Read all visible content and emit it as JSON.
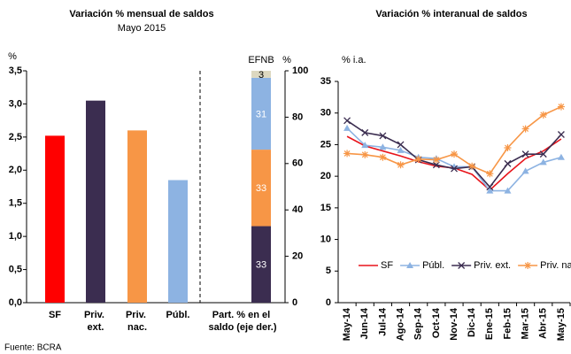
{
  "chart_data": [
    {
      "type": "bar",
      "title": "Variación % mensual de saldos",
      "subtitle": "Mayo 2015",
      "ylabel": "%",
      "y2label": "%",
      "categories": [
        "SF",
        "Priv. ext.",
        "Priv. nac.",
        "Públ."
      ],
      "values": [
        2.52,
        3.05,
        2.6,
        1.85
      ],
      "colors": [
        "#ff0000",
        "#3b2d50",
        "#f79646",
        "#8db3e2"
      ],
      "ylim": [
        0,
        3.5
      ],
      "yticks": [
        {
          "value": 0,
          "label": "0,0"
        },
        {
          "value": 0.5,
          "label": "0,5"
        },
        {
          "value": 1,
          "label": "1,0"
        },
        {
          "value": 1.5,
          "label": "1,5"
        },
        {
          "value": 2,
          "label": "2,0"
        },
        {
          "value": 2.5,
          "label": "2,5"
        },
        {
          "value": 3,
          "label": "3,0"
        },
        {
          "value": 3.5,
          "label": "3,5"
        }
      ],
      "y2lim": [
        0,
        100
      ],
      "y2ticks": [
        0,
        20,
        40,
        60,
        80,
        100
      ],
      "stack": {
        "category": "Part. % en el saldo (eje der.)",
        "axis": "y2",
        "segments": [
          {
            "value": 33,
            "color": "#3b2d50"
          },
          {
            "value": 33,
            "color": "#f79646"
          },
          {
            "value": 31,
            "color": "#8db3e2"
          },
          {
            "name": "EFNB",
            "value": 3,
            "color": "#ddd8c0"
          }
        ]
      }
    },
    {
      "type": "line",
      "title": "Variación % interanual de saldos",
      "ylabel": "% i.a.",
      "categories": [
        "May-14",
        "Jun-14",
        "Jul-14",
        "Ago-14",
        "Sep-14",
        "Oct-14",
        "Nov-14",
        "Dic-14",
        "Ene-15",
        "Feb-15",
        "Mar-15",
        "Abr-15",
        "May-15"
      ],
      "ylim": [
        0,
        35
      ],
      "yticks": [
        0,
        5,
        10,
        15,
        20,
        25,
        30,
        35
      ],
      "series": [
        {
          "name": "SF",
          "color": "#e8141b",
          "marker": "none",
          "values": [
            26.3,
            24.8,
            24.0,
            23.2,
            22.3,
            21.6,
            21.3,
            20.3,
            17.8,
            20.4,
            22.8,
            24.0,
            25.9
          ]
        },
        {
          "name": "Públ.",
          "color": "#8db3e2",
          "marker": "triangle",
          "values": [
            27.6,
            24.9,
            24.6,
            24.1,
            23.0,
            22.8,
            21.5,
            21.5,
            17.7,
            17.7,
            20.8,
            22.2,
            23.0
          ]
        },
        {
          "name": "Priv. ext.",
          "color": "#3b2d50",
          "marker": "cross",
          "values": [
            28.8,
            26.9,
            26.4,
            25.0,
            22.6,
            21.8,
            21.2,
            21.5,
            18.3,
            22.0,
            23.5,
            23.5,
            26.6
          ]
        },
        {
          "name": "Priv. nac.",
          "color": "#f79646",
          "marker": "star",
          "values": [
            23.6,
            23.4,
            23.0,
            21.8,
            22.7,
            22.6,
            23.5,
            21.6,
            20.4,
            24.5,
            27.5,
            29.7,
            31.0
          ]
        }
      ]
    }
  ],
  "source": "Fuente: BCRA"
}
